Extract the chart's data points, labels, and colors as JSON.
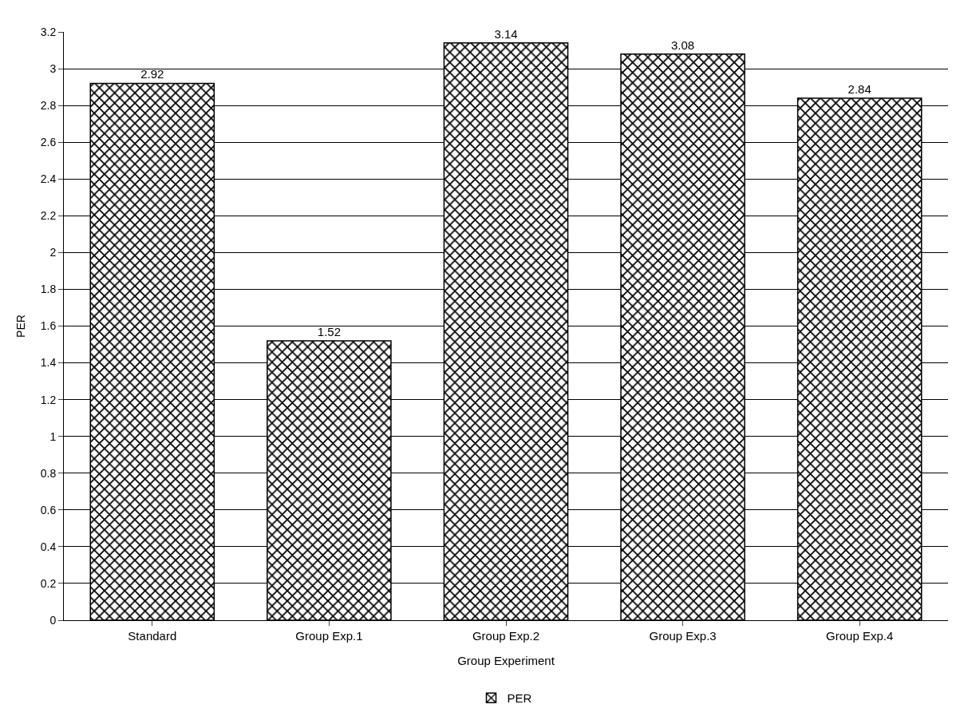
{
  "chart_data": {
    "type": "bar",
    "xlabel": "Group Experiment",
    "ylabel": "PER",
    "categories": [
      "Standard",
      "Group Exp.1",
      "Group Exp.2",
      "Group Exp.3",
      "Group Exp.4"
    ],
    "series": [
      {
        "name": "PER",
        "color": "#000000",
        "values": [
          2.92,
          1.52,
          3.14,
          3.08,
          2.84
        ]
      }
    ],
    "ylim": [
      0,
      3.2
    ],
    "yticks": [
      0,
      0.2,
      0.4,
      0.6,
      0.8,
      1,
      1.2,
      1.4,
      1.6,
      1.8,
      2,
      2.2,
      2.4,
      2.6,
      2.8,
      3,
      3.2
    ],
    "grid": "y",
    "legend": "bottom",
    "data_labels": true
  }
}
